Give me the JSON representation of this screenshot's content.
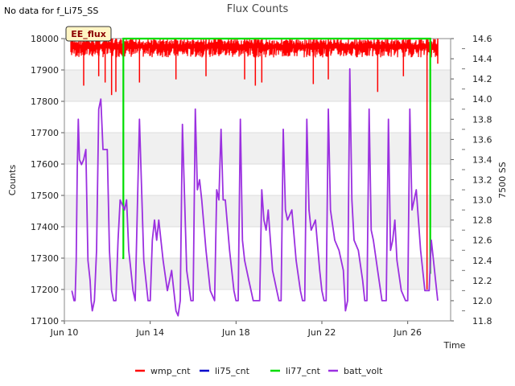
{
  "header": {
    "no_data_note": "No data for f_Li75_SS"
  },
  "badge": {
    "label": "EE_flux",
    "bg": "#fff5c4",
    "text_color": "#8b0000"
  },
  "chart_data": {
    "type": "line",
    "title": "Flux Counts",
    "xlabel": "Time",
    "ylabel": "Counts",
    "ylabel_right": "7500 SS",
    "x_range_days": [
      10,
      28
    ],
    "x_ticks": [
      {
        "day": 10,
        "label": "Jun 10"
      },
      {
        "day": 14,
        "label": "Jun 14"
      },
      {
        "day": 18,
        "label": "Jun 18"
      },
      {
        "day": 22,
        "label": "Jun 22"
      },
      {
        "day": 26,
        "label": "Jun 26"
      }
    ],
    "ylim": [
      17100,
      18000
    ],
    "y_ticks": [
      17100,
      17200,
      17300,
      17400,
      17500,
      17600,
      17700,
      17800,
      17900,
      18000
    ],
    "y2lim": [
      11.8,
      14.6
    ],
    "y2_ticks": [
      "11.8",
      "12.0",
      "12.2",
      "12.4",
      "12.6",
      "12.8",
      "13.0",
      "13.2",
      "13.4",
      "13.6",
      "13.8",
      "14.0",
      "14.2",
      "14.4",
      "14.6"
    ],
    "colors": {
      "wmp_cnt": "#ff0000",
      "li75_cnt": "#0000cc",
      "li77_cnt": "#00dd00",
      "batt_volt": "#9b30e0"
    },
    "legend": {
      "placement": "bottom",
      "items": [
        "wmp_cnt",
        "li75_cnt",
        "li77_cnt",
        "batt_volt"
      ]
    },
    "wmp_cnt": {
      "day_range": [
        10.3,
        27.4
      ],
      "upper": 18000,
      "typical_low": 17940,
      "dips": [
        [
          10.9,
          17850
        ],
        [
          11.6,
          17880
        ],
        [
          11.9,
          17860
        ],
        [
          12.2,
          17820
        ],
        [
          12.4,
          17830
        ],
        [
          13.5,
          17860
        ],
        [
          15.2,
          17870
        ],
        [
          16.6,
          17880
        ],
        [
          18.4,
          17870
        ],
        [
          18.9,
          17850
        ],
        [
          19.2,
          17860
        ],
        [
          21.6,
          17855
        ],
        [
          22.3,
          17870
        ],
        [
          24.6,
          17830
        ],
        [
          25.8,
          17880
        ],
        [
          26.9,
          17200
        ],
        [
          27.4,
          17920
        ]
      ]
    },
    "li77_cnt": {
      "segments": [
        {
          "x": [
            12.7,
            12.75,
            12.75,
            12.8,
            27.0,
            27.05,
            27.05
          ],
          "y": [
            17300,
            17300,
            18000,
            18000,
            18000,
            18000,
            17250
          ]
        }
      ]
    },
    "batt_volt": {
      "x": [
        10.35,
        10.4,
        10.45,
        10.5,
        10.55,
        10.6,
        10.65,
        10.7,
        10.8,
        10.9,
        11.0,
        11.1,
        11.2,
        11.25,
        11.3,
        11.4,
        11.5,
        11.6,
        11.7,
        11.8,
        11.9,
        12.0,
        12.1,
        12.2,
        12.3,
        12.4,
        12.5,
        12.6,
        12.7,
        12.8,
        12.9,
        13.0,
        13.1,
        13.2,
        13.3,
        13.5,
        13.7,
        13.9,
        14.0,
        14.1,
        14.2,
        14.3,
        14.4,
        14.6,
        14.8,
        15.0,
        15.1,
        15.2,
        15.3,
        15.4,
        15.5,
        15.7,
        15.9,
        16.0,
        16.1,
        16.2,
        16.3,
        16.4,
        16.6,
        16.8,
        17.0,
        17.1,
        17.2,
        17.3,
        17.4,
        17.5,
        17.7,
        17.9,
        18.0,
        18.1,
        18.2,
        18.3,
        18.4,
        18.6,
        18.8,
        19.0,
        19.1,
        19.2,
        19.3,
        19.4,
        19.5,
        19.7,
        19.9,
        20.0,
        20.1,
        20.2,
        20.3,
        20.4,
        20.6,
        20.8,
        21.0,
        21.1,
        21.2,
        21.3,
        21.4,
        21.5,
        21.7,
        21.9,
        22.0,
        22.1,
        22.2,
        22.3,
        22.4,
        22.6,
        22.8,
        23.0,
        23.1,
        23.2,
        23.3,
        23.4,
        23.5,
        23.7,
        23.9,
        24.0,
        24.1,
        24.2,
        24.3,
        24.4,
        24.6,
        24.8,
        25.0,
        25.1,
        25.2,
        25.3,
        25.4,
        25.5,
        25.7,
        25.9,
        26.0,
        26.1,
        26.2,
        26.3,
        26.4,
        26.6,
        26.8,
        27.0,
        27.1,
        27.2,
        27.3,
        27.4
      ],
      "y": [
        12.1,
        12.05,
        12.0,
        12.0,
        12.4,
        13.3,
        13.8,
        13.4,
        13.35,
        13.4,
        13.5,
        12.4,
        12.2,
        12.0,
        11.9,
        12.0,
        12.5,
        13.9,
        14.0,
        13.5,
        13.5,
        13.5,
        12.5,
        12.1,
        12.0,
        12.0,
        12.6,
        13.0,
        12.95,
        12.9,
        13.0,
        12.5,
        12.3,
        12.1,
        12.0,
        13.8,
        12.4,
        12.0,
        12.0,
        12.6,
        12.8,
        12.6,
        12.8,
        12.4,
        12.1,
        12.3,
        12.1,
        11.9,
        11.85,
        12.0,
        13.75,
        12.3,
        12.0,
        12.0,
        13.9,
        13.1,
        13.2,
        13.0,
        12.5,
        12.1,
        12.0,
        13.1,
        13.0,
        13.7,
        13.0,
        13.0,
        12.5,
        12.1,
        12.0,
        12.0,
        13.8,
        12.6,
        12.4,
        12.2,
        12.0,
        12.0,
        12.0,
        13.1,
        12.8,
        12.7,
        12.9,
        12.3,
        12.1,
        12.0,
        12.0,
        13.7,
        12.9,
        12.8,
        12.9,
        12.4,
        12.1,
        12.0,
        12.0,
        13.8,
        12.9,
        12.7,
        12.8,
        12.3,
        12.1,
        12.0,
        12.0,
        13.9,
        12.9,
        12.6,
        12.5,
        12.3,
        11.9,
        12.0,
        14.3,
        13.0,
        12.6,
        12.5,
        12.2,
        12.0,
        12.0,
        13.9,
        12.7,
        12.6,
        12.3,
        12.0,
        12.0,
        13.8,
        12.5,
        12.6,
        12.8,
        12.4,
        12.1,
        12.0,
        12.0,
        13.9,
        12.9,
        13.0,
        13.1,
        12.5,
        12.1,
        12.1,
        12.6,
        12.4,
        12.2,
        12.0
      ]
    }
  }
}
